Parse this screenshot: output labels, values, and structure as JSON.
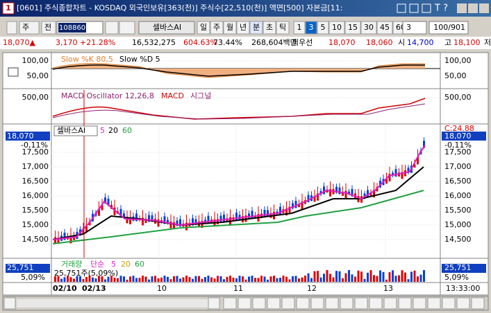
{
  "title_bar": {
    "icon": "1",
    "text": "[0601] 주식종합차트 - KOSDAQ 외국인보유[363(천)] 주식수[22,510(천)] 액면[500] 자본금[11:",
    "help": "T ?"
  },
  "toolbar": {
    "unit": "주",
    "prev": "전",
    "code": "108860",
    "name": "셀바스AI",
    "periods": [
      "일",
      "주",
      "월",
      "년",
      "분",
      "초",
      "틱"
    ],
    "intervals": [
      "1",
      "3",
      "5",
      "10",
      "15",
      "30",
      "45",
      "60"
    ],
    "count": "3",
    "range": "100/901"
  },
  "quote": {
    "price": "18,070▲",
    "change": "3,170",
    "rate": "+21.28%",
    "volume": "16,532,275",
    "vol_rate": "604.63%",
    "turnover": "73.44%",
    "cap": "268,604백만",
    "best_label": "최우선",
    "ask": "18,070",
    "bid": "18,060",
    "open_label": "시",
    "open": "14,700",
    "high_label": "고",
    "high": "18,100",
    "low_label": "저"
  },
  "stochastic": {
    "k": "Slow %K 80,5",
    "d": "Slow %D 5",
    "ticks": [
      "100,00",
      "50,00"
    ]
  },
  "macd": {
    "osc": "MACD Oscillator 12,26,8",
    "macd": "MACD",
    "signal": "시그널",
    "ticks": [
      "500,00"
    ]
  },
  "price": {
    "name": "셀바스AI",
    "ma": [
      "5",
      "20",
      "60"
    ],
    "last": "18,070",
    "last_rate": "-0,11%",
    "marker": "C:24.88",
    "ticks": [
      "17,500",
      "17,000",
      "16,500",
      "16,000",
      "15,500",
      "15,000",
      "14,500"
    ]
  },
  "volume": {
    "label": "거래량",
    "kind": "단순",
    "ma": [
      "5",
      "20",
      "60"
    ],
    "last": "25,751",
    "last_rate": "5,09%",
    "cursor": "25,751주(5,09%)"
  },
  "x_axis": {
    "labels": [
      "02/10",
      "02/13",
      "10",
      "11",
      "12",
      "13"
    ],
    "time": "13:33:00"
  }
}
